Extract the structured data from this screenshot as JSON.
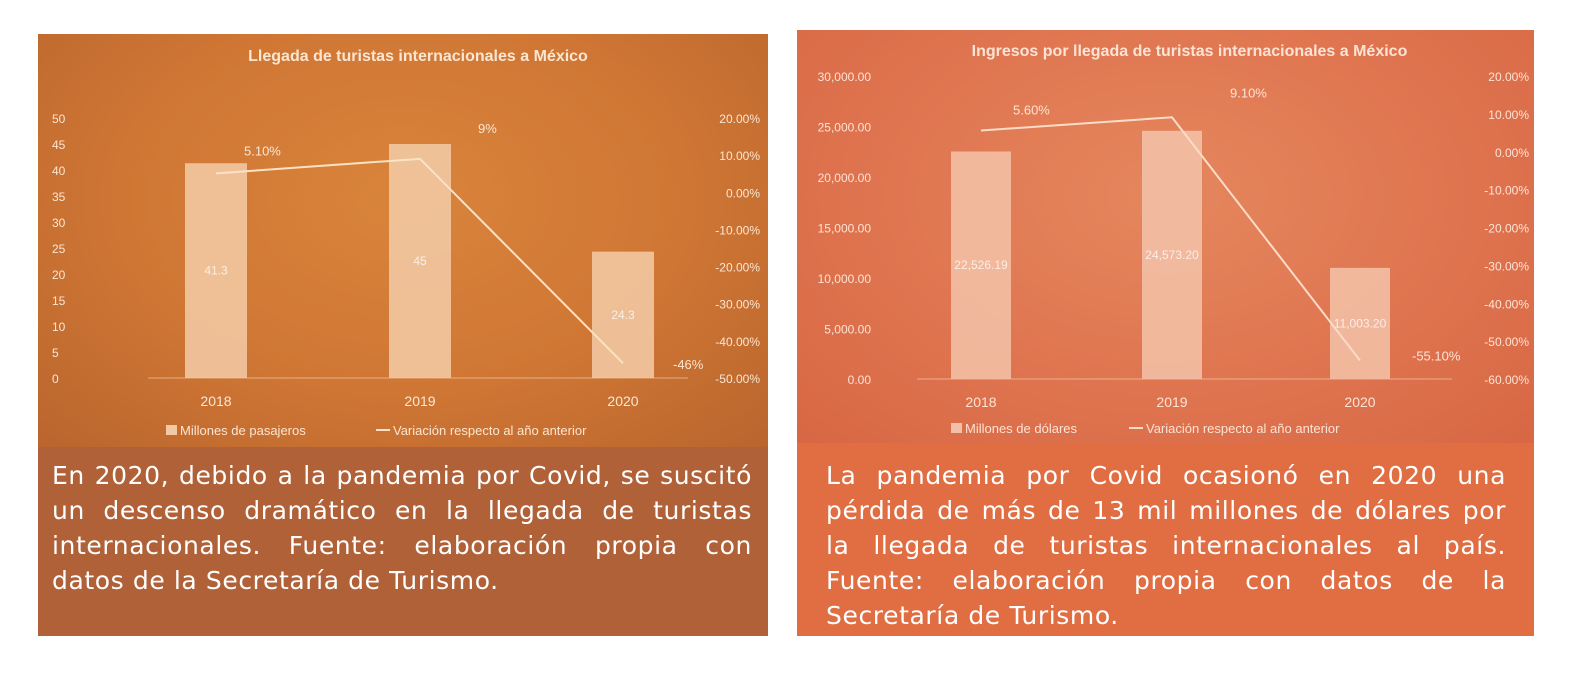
{
  "chart_data": [
    {
      "type": "bar+line",
      "title": "Llegada de turistas internacionales a México",
      "categories": [
        "2018",
        "2019",
        "2020"
      ],
      "series": [
        {
          "name": "Millones de pasajeros",
          "type": "bar",
          "axis": "left",
          "values": [
            41.3,
            45,
            24.3
          ],
          "labels": [
            "41.3",
            "45",
            "24.3"
          ]
        },
        {
          "name": "Variación respecto al año anterior",
          "type": "line",
          "axis": "right",
          "values": [
            5.1,
            9,
            -46
          ],
          "labels": [
            "5.10%",
            "9%",
            "-46%"
          ]
        }
      ],
      "left_axis": {
        "min": 0,
        "max": 50,
        "ticks": [
          "0",
          "5",
          "10",
          "15",
          "20",
          "25",
          "30",
          "35",
          "40",
          "45",
          "50"
        ]
      },
      "right_axis": {
        "min": -50,
        "max": 20,
        "ticks": [
          "20.00%",
          "10.00%",
          "0.00%",
          "-10.00%",
          "-20.00%",
          "-30.00%",
          "-40.00%",
          "-50.00%"
        ]
      },
      "legend": "bottom",
      "colors": {
        "bar": "#f2c9a4",
        "line": "#fbe2c6",
        "text": "#fbe6d2"
      }
    },
    {
      "type": "bar+line",
      "title": "Ingresos por llegada de turistas internacionales a México",
      "categories": [
        "2018",
        "2019",
        "2020"
      ],
      "series": [
        {
          "name": "Millones de dólares",
          "type": "bar",
          "axis": "left",
          "values": [
            22526.19,
            24573.2,
            11003.2
          ],
          "labels": [
            "22,526.19",
            "24,573.20",
            "11,003.20"
          ]
        },
        {
          "name": "Variación respecto al año anterior",
          "type": "line",
          "axis": "right",
          "values": [
            5.6,
            9.1,
            -55.1
          ],
          "labels": [
            "5.60%",
            "9.10%",
            "-55.10%"
          ]
        }
      ],
      "left_axis": {
        "min": 0,
        "max": 30000,
        "ticks": [
          "0.00",
          "5,000.00",
          "10,000.00",
          "15,000.00",
          "20,000.00",
          "25,000.00",
          "30,000.00"
        ]
      },
      "right_axis": {
        "min": -60,
        "max": 20,
        "ticks": [
          "20.00%",
          "10.00%",
          "0.00%",
          "-10.00%",
          "-20.00%",
          "-30.00%",
          "-40.00%",
          "-50.00%",
          "-60.00%"
        ]
      },
      "legend": "bottom",
      "colors": {
        "bar": "#f2c0a6",
        "line": "#fbdcc8",
        "text": "#fde3d4"
      }
    }
  ],
  "captions": {
    "left": "En 2020, debido a la pandemia por Covid, se suscitó un descenso dramático en la llegada de turistas internacionales. Fuente: elaboración propia con datos de la Secretaría de Turismo.",
    "right": "La pandemia por Covid ocasionó en 2020 una pérdida de más de 13 mil millones de dólares por la llegada de turistas internacionales al país. Fuente: elaboración propia con datos de la Secretaría de Turismo."
  },
  "colors": {
    "panel_left": "#b06138",
    "panel_right": "#e06e42"
  }
}
